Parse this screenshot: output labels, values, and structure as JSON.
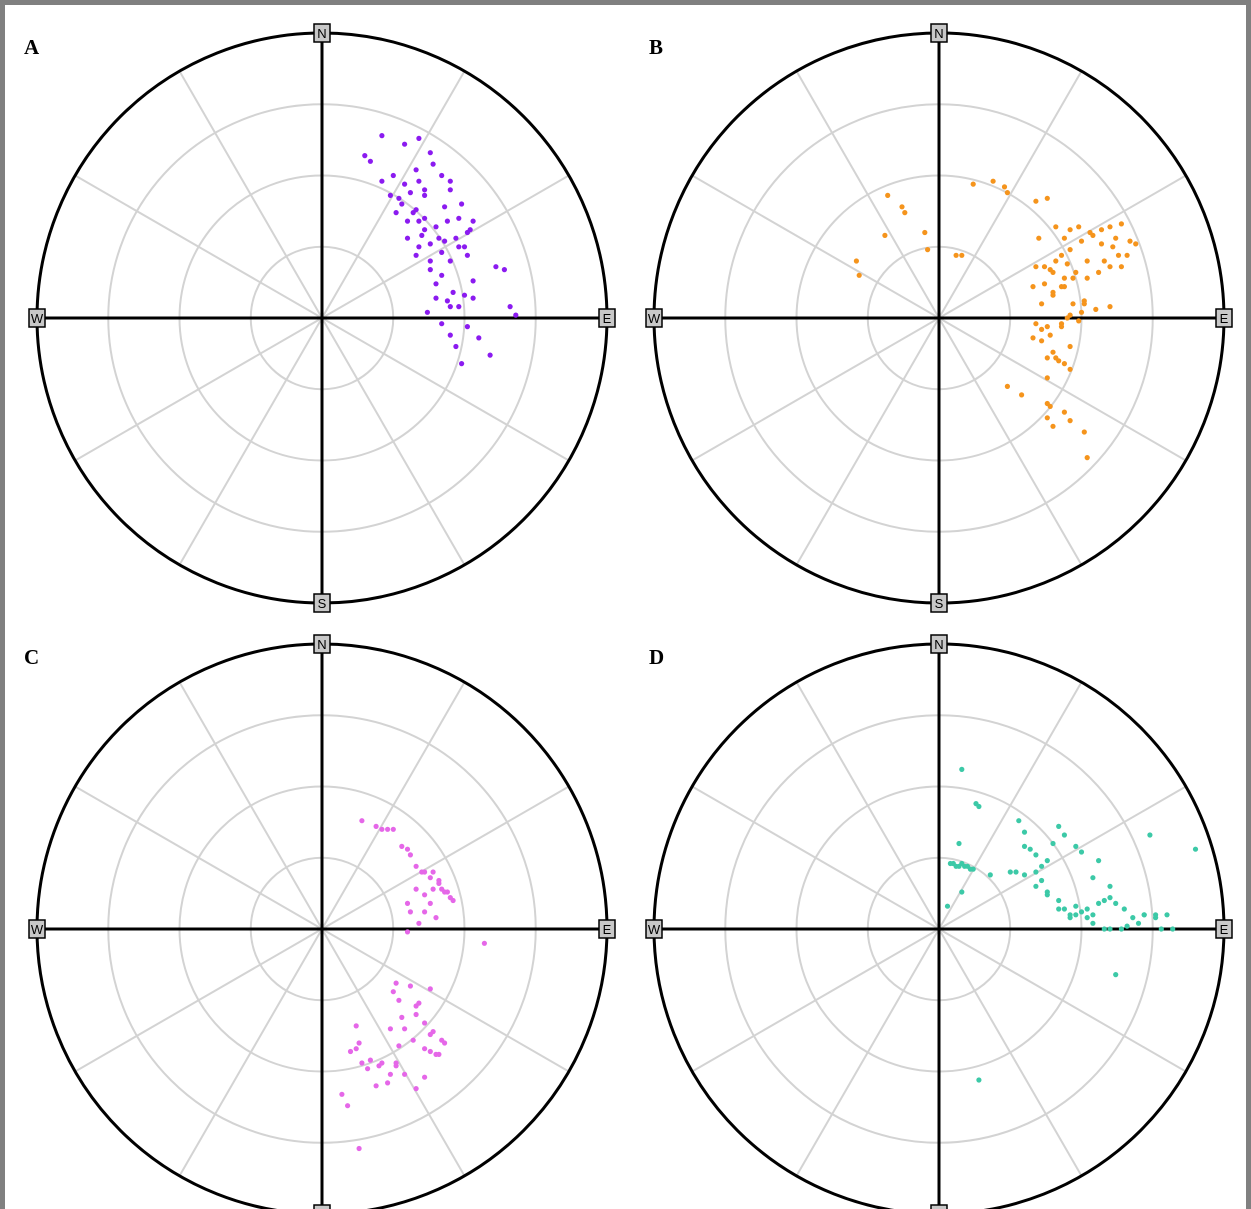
{
  "figure": {
    "panels": [
      "A",
      "B",
      "C",
      "D"
    ],
    "directions": [
      "N",
      "E",
      "S",
      "W"
    ]
  },
  "chart_data": [
    {
      "type": "scatter",
      "projection": "polar stereonet",
      "panel": "A",
      "color": "#8b1bf0",
      "x": [
        0.21,
        0.29,
        0.34,
        0.38,
        0.33,
        0.34,
        0.36,
        0.27,
        0.25,
        0.17,
        0.15,
        0.21,
        0.24,
        0.28,
        0.32,
        0.34,
        0.41,
        0.44,
        0.47,
        0.5,
        0.52,
        0.53,
        0.61,
        0.64,
        0.66,
        0.68,
        0.59,
        0.51,
        0.49,
        0.45,
        0.47,
        0.42,
        0.45,
        0.5,
        0.53,
        0.4,
        0.36,
        0.33,
        0.31,
        0.29,
        0.26,
        0.3,
        0.35,
        0.38,
        0.42,
        0.38,
        0.42,
        0.45,
        0.48,
        0.51,
        0.53,
        0.49,
        0.45,
        0.42,
        0.39,
        0.36,
        0.34,
        0.38,
        0.4,
        0.44,
        0.46,
        0.48,
        0.37,
        0.33,
        0.3,
        0.36,
        0.43,
        0.48,
        0.51,
        0.43,
        0.45,
        0.4,
        0.55
      ],
      "y": [
        0.64,
        0.61,
        0.63,
        0.58,
        0.52,
        0.48,
        0.45,
        0.42,
        0.5,
        0.55,
        0.57,
        0.48,
        0.43,
        0.4,
        0.37,
        0.34,
        0.28,
        0.34,
        0.28,
        0.25,
        0.31,
        0.07,
        0.18,
        0.17,
        0.04,
        0.01,
        -0.13,
        -0.03,
        -0.16,
        -0.06,
        -0.1,
        -0.02,
        0.04,
        0.08,
        0.13,
        0.32,
        0.35,
        0.38,
        0.44,
        0.47,
        0.37,
        0.34,
        0.29,
        0.26,
        0.23,
        0.2,
        0.15,
        0.2,
        0.25,
        0.3,
        0.34,
        0.4,
        0.45,
        0.5,
        0.54,
        0.43,
        0.25,
        0.17,
        0.12,
        0.06,
        0.09,
        0.04,
        0.02,
        0.22,
        0.28,
        0.31,
        0.39,
        0.35,
        0.22,
        0.27,
        0.48,
        0.07,
        -0.07
      ]
    },
    {
      "type": "scatter",
      "projection": "polar stereonet",
      "panel": "B",
      "color": "#f5941c",
      "x": [
        -0.18,
        -0.13,
        -0.12,
        -0.19,
        -0.04,
        -0.05,
        -0.29,
        -0.28,
        0.06,
        0.08,
        0.12,
        0.19,
        0.23,
        0.24,
        0.34,
        0.38,
        0.41,
        0.44,
        0.46,
        0.49,
        0.54,
        0.57,
        0.6,
        0.62,
        0.64,
        0.67,
        0.69,
        0.66,
        0.61,
        0.57,
        0.53,
        0.5,
        0.46,
        0.43,
        0.41,
        0.45,
        0.48,
        0.52,
        0.56,
        0.6,
        0.64,
        0.63,
        0.58,
        0.52,
        0.47,
        0.44,
        0.47,
        0.51,
        0.55,
        0.5,
        0.46,
        0.43,
        0.4,
        0.36,
        0.33,
        0.37,
        0.4,
        0.43,
        0.38,
        0.34,
        0.43,
        0.51,
        0.6,
        0.45,
        0.49,
        0.44,
        0.4,
        0.39,
        0.34,
        0.37,
        0.35,
        0.36,
        0.39,
        0.36,
        0.33,
        0.4,
        0.38,
        0.41,
        0.44,
        0.46,
        0.38,
        0.24,
        0.29,
        0.38,
        0.39,
        0.44,
        0.38,
        0.46,
        0.4,
        0.52,
        0.46,
        0.42,
        0.51
      ],
      "y": [
        0.43,
        0.39,
        0.37,
        0.29,
        0.24,
        0.3,
        0.2,
        0.15,
        0.22,
        0.22,
        0.47,
        0.48,
        0.46,
        0.44,
        0.41,
        0.42,
        0.32,
        0.28,
        0.31,
        0.32,
        0.29,
        0.31,
        0.32,
        0.28,
        0.33,
        0.27,
        0.26,
        0.22,
        0.25,
        0.26,
        0.3,
        0.27,
        0.24,
        0.22,
        0.2,
        0.19,
        0.16,
        0.14,
        0.16,
        0.18,
        0.18,
        0.22,
        0.2,
        0.2,
        0.14,
        0.14,
        0.05,
        0.06,
        0.03,
        0.02,
        0.01,
        0.11,
        0.08,
        0.05,
        0.11,
        0.12,
        0.09,
        -0.02,
        -0.03,
        -0.02,
        -0.03,
        0.05,
        0.04,
        0.0,
        -0.01,
        0.11,
        0.16,
        0.17,
        0.18,
        0.18,
        0.28,
        -0.04,
        -0.06,
        -0.08,
        -0.07,
        -0.12,
        -0.14,
        -0.14,
        -0.16,
        -0.18,
        -0.21,
        -0.24,
        -0.27,
        -0.3,
        -0.31,
        -0.33,
        -0.35,
        -0.36,
        -0.38,
        -0.49,
        -0.1,
        -0.15,
        -0.4
      ]
    },
    {
      "type": "scatter",
      "projection": "polar stereonet",
      "panel": "C",
      "color": "#e567e8",
      "x": [
        0.14,
        0.19,
        0.21,
        0.23,
        0.25,
        0.28,
        0.3,
        0.31,
        0.33,
        0.35,
        0.36,
        0.38,
        0.39,
        0.41,
        0.42,
        0.44,
        0.46,
        0.36,
        0.33,
        0.3,
        0.31,
        0.34,
        0.36,
        0.38,
        0.39,
        0.41,
        0.43,
        0.45,
        0.4,
        0.57,
        0.3,
        0.38,
        0.34,
        0.31,
        0.26,
        0.25,
        0.27,
        0.28,
        0.24,
        0.32,
        0.36,
        0.38,
        0.4,
        0.41,
        0.43,
        0.38,
        0.36,
        0.33,
        0.29,
        0.27,
        0.26,
        0.24,
        0.21,
        0.17,
        0.13,
        0.1,
        0.07,
        0.09,
        0.19,
        0.16,
        0.12,
        0.12,
        0.14,
        0.2,
        0.23,
        0.26,
        0.29,
        0.33,
        0.36,
        0.42,
        0.39,
        0.33,
        0.13
      ],
      "y": [
        0.38,
        0.36,
        0.35,
        0.35,
        0.35,
        0.29,
        0.28,
        0.26,
        0.22,
        0.2,
        0.2,
        0.18,
        0.2,
        0.17,
        0.14,
        0.13,
        0.1,
        0.12,
        0.14,
        0.09,
        0.06,
        0.02,
        0.06,
        0.09,
        0.14,
        0.16,
        0.13,
        0.11,
        0.04,
        -0.05,
        -0.01,
        -0.21,
        -0.26,
        -0.2,
        -0.19,
        -0.22,
        -0.25,
        -0.31,
        -0.35,
        -0.39,
        -0.42,
        -0.43,
        -0.44,
        -0.44,
        -0.4,
        -0.37,
        -0.33,
        -0.3,
        -0.35,
        -0.41,
        -0.47,
        -0.51,
        -0.47,
        -0.46,
        -0.4,
        -0.43,
        -0.58,
        -0.62,
        -0.55,
        -0.49,
        -0.42,
        -0.34,
        -0.47,
        -0.48,
        -0.54,
        -0.48,
        -0.51,
        -0.56,
        -0.52,
        -0.39,
        -0.36,
        -0.27,
        -0.77
      ]
    },
    {
      "type": "scatter",
      "projection": "polar stereonet",
      "panel": "D",
      "color": "#3cc9a7",
      "x": [
        0.08,
        0.13,
        0.14,
        0.04,
        0.05,
        0.06,
        0.07,
        0.08,
        0.09,
        0.1,
        0.11,
        0.12,
        0.18,
        0.25,
        0.27,
        0.3,
        0.34,
        0.38,
        0.42,
        0.44,
        0.46,
        0.48,
        0.5,
        0.52,
        0.54,
        0.58,
        0.6,
        0.64,
        0.66,
        0.7,
        0.72,
        0.76,
        0.8,
        0.82,
        0.78,
        0.76,
        0.72,
        0.68,
        0.65,
        0.62,
        0.6,
        0.58,
        0.56,
        0.52,
        0.48,
        0.46,
        0.42,
        0.38,
        0.36,
        0.34,
        0.32,
        0.3,
        0.28,
        0.3,
        0.34,
        0.36,
        0.38,
        0.4,
        0.42,
        0.44,
        0.48,
        0.5,
        0.56,
        0.54,
        0.9,
        0.03,
        0.08,
        0.62,
        0.74,
        0.54,
        0.14,
        0.6,
        0.07
      ],
      "y": [
        0.56,
        0.44,
        0.43,
        0.23,
        0.23,
        0.22,
        0.22,
        0.23,
        0.22,
        0.22,
        0.21,
        0.21,
        0.19,
        0.2,
        0.2,
        0.19,
        0.15,
        0.13,
        0.1,
        0.07,
        0.05,
        0.05,
        0.06,
        0.04,
        0.02,
        0.0,
        0.0,
        0.0,
        0.01,
        0.02,
        0.05,
        0.05,
        0.05,
        0.0,
        0.0,
        0.04,
        0.05,
        0.04,
        0.07,
        0.09,
        0.11,
        0.1,
        0.09,
        0.07,
        0.08,
        0.04,
        0.07,
        0.12,
        0.17,
        0.2,
        0.28,
        0.34,
        0.38,
        0.29,
        0.26,
        0.22,
        0.24,
        0.3,
        0.36,
        0.33,
        0.29,
        0.27,
        0.24,
        0.18,
        0.28,
        0.08,
        0.13,
        -0.16,
        0.33,
        0.05,
        -0.53,
        0.15,
        0.3
      ]
    }
  ]
}
